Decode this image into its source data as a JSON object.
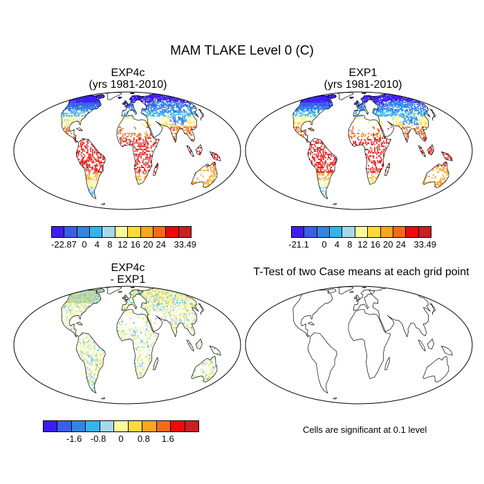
{
  "figure": {
    "title": "MAM TLAKE Level 0 (C)",
    "note": "Cells are significant at 0.1 level"
  },
  "panels": [
    {
      "id": "exp4c",
      "title_line1": "EXP4c",
      "title_line2": "(yrs 1981-2010)",
      "labels": [
        "-22.87",
        "0",
        "4",
        "8",
        "12",
        "16",
        "20",
        "24",
        "33.49"
      ]
    },
    {
      "id": "exp1",
      "title_line1": "EXP1",
      "title_line2": "(yrs 1981-2010)",
      "labels": [
        "-21.1",
        "0",
        "4",
        "8",
        "12",
        "16",
        "20",
        "24",
        "33.49"
      ]
    },
    {
      "id": "diff",
      "title_line1": "EXP4c",
      "title_line2": "- EXP1",
      "labels": [
        "-1.6",
        "-0.8",
        "0",
        "0.8",
        "1.6"
      ]
    },
    {
      "id": "ttest",
      "title_line1": "T-Test of two Case means at each grid point"
    }
  ],
  "colors": {
    "abs_scale": [
      "#3d1ef0",
      "#3a5ee8",
      "#2f86e8",
      "#34b4ee",
      "#a6d8ec",
      "#fdf89a",
      "#fddb3a",
      "#fca51d",
      "#f56a15",
      "#ec0a0a",
      "#c72025"
    ],
    "diff_scale": [
      "#3d1ef0",
      "#3a5ee8",
      "#2f86e8",
      "#34b4ee",
      "#a6d8ec",
      "#fdf89a",
      "#fddb3a",
      "#fca51d",
      "#f56a15",
      "#ec0a0a",
      "#c72025"
    ],
    "coast": "#000000",
    "land_sig": "#b9d59a"
  }
}
